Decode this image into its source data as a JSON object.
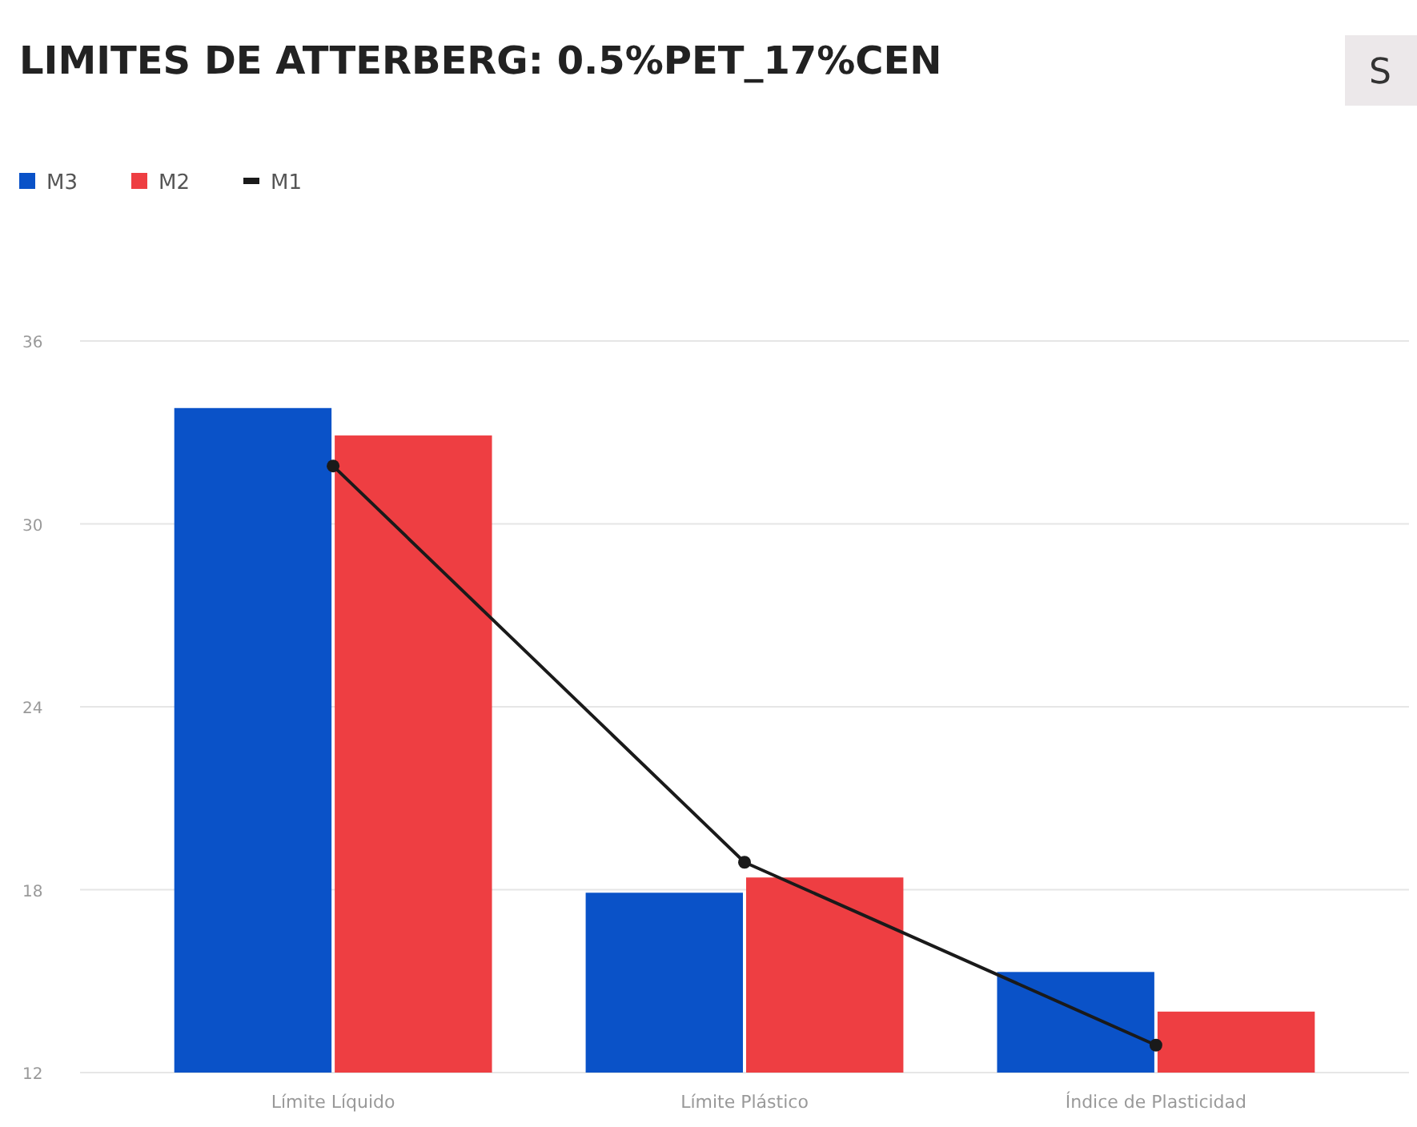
{
  "chart_data": {
    "type": "bar",
    "title": "LIMITES DE ATTERBERG: 0.5%PET_17%CEN",
    "categories": [
      "Límite Líquido",
      "Límite Plástico",
      "Índice de Plasticidad"
    ],
    "series": [
      {
        "name": "M3",
        "color": "#0a52c8",
        "values": [
          33.8,
          17.9,
          15.3
        ]
      },
      {
        "name": "M2",
        "color": "#ee3e42",
        "values": [
          32.9,
          18.4,
          14.0
        ]
      },
      {
        "name": "M1",
        "type": "line",
        "color": "#1a1a1a",
        "values": [
          31.9,
          18.9,
          12.9
        ]
      }
    ],
    "ylim": [
      12,
      36
    ],
    "yticks": [
      12,
      18,
      24,
      30,
      36
    ],
    "grid": "y",
    "legend": "top left",
    "marker": "circle",
    "annotations": [
      "S"
    ]
  }
}
